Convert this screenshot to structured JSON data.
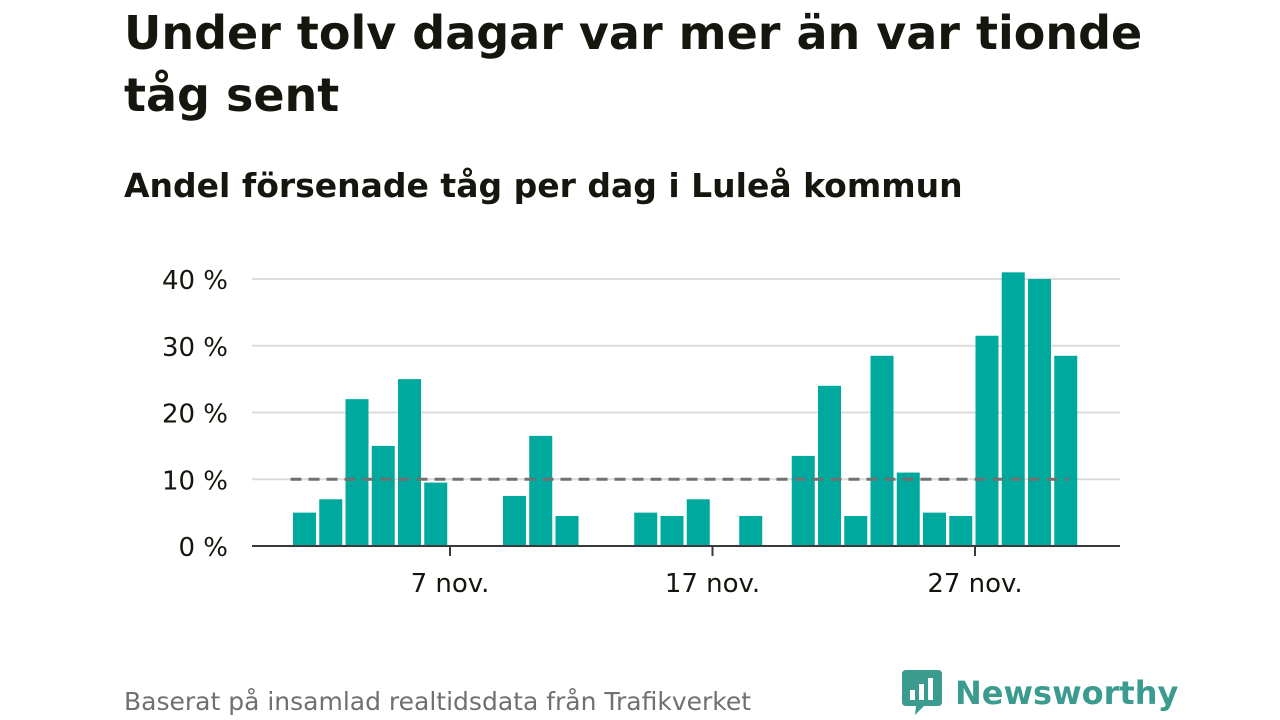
{
  "title": "Under tolv dagar var mer än var tionde tåg sent",
  "subtitle": "Andel försenade tåg per dag i Luleå kommun",
  "source": "Baserat på insamlad realtidsdata från Trafikverket",
  "brand": {
    "name": "Newsworthy",
    "icon": "newsworthy-logo-icon"
  },
  "colors": {
    "bar": "#00a99d",
    "grid": "#dcdcdc",
    "axis": "#3a3a3a",
    "reference_line": "#707070",
    "text": "#16160f",
    "muted_text": "#707070",
    "brand": "#3a9b8e"
  },
  "chart_data": {
    "type": "bar",
    "xlabel": "",
    "ylabel": "",
    "x_unit": "day in November",
    "days": [
      1,
      2,
      3,
      4,
      5,
      6,
      7,
      8,
      9,
      10,
      11,
      12,
      13,
      14,
      15,
      16,
      17,
      18,
      19,
      20,
      21,
      22,
      23,
      24,
      25,
      26,
      27,
      28,
      29,
      30
    ],
    "values": [
      5,
      7,
      22,
      15,
      25,
      9.5,
      null,
      null,
      7.5,
      16.5,
      4.5,
      null,
      null,
      5,
      4.5,
      7,
      null,
      4.5,
      null,
      13.5,
      24,
      4.5,
      28.5,
      11,
      5,
      4.5,
      31.5,
      41,
      40,
      28.5
    ],
    "xticks": [
      {
        "day": 7,
        "label": "7 nov."
      },
      {
        "day": 17,
        "label": "17 nov."
      },
      {
        "day": 27,
        "label": "27 nov."
      }
    ],
    "yticks": [
      {
        "value": 0,
        "label": "0 %"
      },
      {
        "value": 10,
        "label": "10 %"
      },
      {
        "value": 20,
        "label": "20 %"
      },
      {
        "value": 30,
        "label": "30 %"
      },
      {
        "value": 40,
        "label": "40 %"
      }
    ],
    "ylim": [
      0,
      42
    ],
    "reference_line": {
      "value": 10,
      "style": "dashed"
    },
    "grid": true,
    "legend": "none"
  }
}
